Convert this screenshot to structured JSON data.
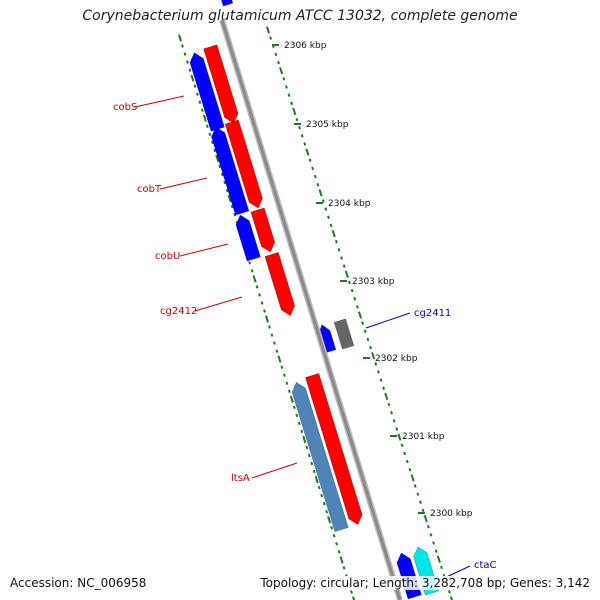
{
  "title": "Corynebacterium glutamicum ATCC 13032, complete genome",
  "accession": "Accession: NC_006958",
  "summary": "Topology: circular; Length: 3,282,708 bp; Genes: 3,142",
  "colors": {
    "backbone": "#8a8a8a",
    "forward": "#ff0000",
    "reverse": "#0000ff",
    "tick": "#227722",
    "label_red": "#cc0000",
    "label_blue": "#0000cc"
  },
  "scale_labels": [
    "2306 kbp",
    "2305 kbp",
    "2304 kbp",
    "2303 kbp",
    "2302 kbp",
    "2301 kbp",
    "2300 kbp"
  ],
  "gene_labels": [
    {
      "name": "cobS",
      "color": "#cc0000"
    },
    {
      "name": "cobT",
      "color": "#cc0000"
    },
    {
      "name": "cobU",
      "color": "#cc0000"
    },
    {
      "name": "cg2412",
      "color": "#cc0000"
    },
    {
      "name": "cg2411",
      "color": "#0000cc"
    },
    {
      "name": "ltsA",
      "color": "#cc0000"
    },
    {
      "name": "ctaC",
      "color": "#0000cc"
    }
  ]
}
